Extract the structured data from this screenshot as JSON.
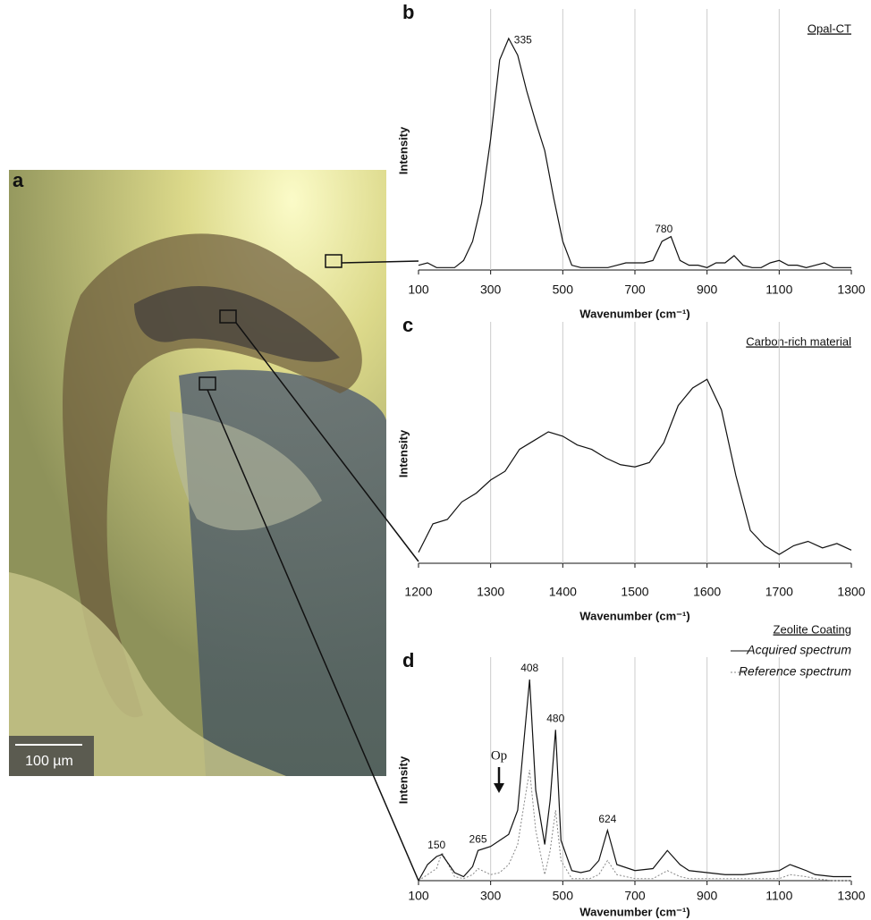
{
  "figure": {
    "panel": "a",
    "scale_bar": "100 µm"
  },
  "chart_data": [
    {
      "type": "line",
      "panel": "b",
      "title": "Opal-CT",
      "x_label": "Wavenumber (cm⁻¹)",
      "y_label": "Intensity",
      "x": [
        100,
        125,
        150,
        175,
        200,
        225,
        250,
        275,
        300,
        325,
        350,
        375,
        400,
        425,
        450,
        475,
        500,
        525,
        550,
        575,
        600,
        625,
        650,
        675,
        700,
        725,
        750,
        775,
        800,
        825,
        850,
        875,
        900,
        925,
        950,
        975,
        1000,
        1025,
        1050,
        1075,
        1100,
        1125,
        1150,
        1175,
        1200,
        1225,
        1250,
        1275,
        1300
      ],
      "values": [
        2,
        3,
        1,
        1,
        1,
        4,
        12,
        28,
        55,
        88,
        97,
        90,
        75,
        62,
        50,
        30,
        12,
        2,
        1,
        1,
        1,
        1,
        2,
        3,
        3,
        3,
        4,
        12,
        14,
        4,
        2,
        2,
        1,
        3,
        3,
        6,
        2,
        1,
        1,
        3,
        4,
        2,
        2,
        1,
        2,
        3,
        1,
        1,
        1
      ],
      "color": "#111111",
      "peaks": [
        335,
        780
      ],
      "xlim": [
        100,
        1300
      ],
      "ylim": [
        0,
        100
      ],
      "xticks": [
        100,
        300,
        500,
        700,
        900,
        1100,
        1300
      ],
      "grid": true
    },
    {
      "type": "line",
      "panel": "c",
      "title": "Carbon-rich material",
      "x_label": "Wavenumber (cm⁻¹)",
      "y_label": "Intensity",
      "x": [
        1200,
        1220,
        1240,
        1260,
        1280,
        1300,
        1320,
        1340,
        1360,
        1380,
        1400,
        1420,
        1440,
        1460,
        1480,
        1500,
        1520,
        1540,
        1560,
        1580,
        1600,
        1620,
        1640,
        1660,
        1680,
        1700,
        1720,
        1740,
        1760,
        1780,
        1800
      ],
      "values": [
        5,
        18,
        20,
        28,
        32,
        38,
        42,
        52,
        56,
        60,
        58,
        54,
        52,
        48,
        45,
        44,
        46,
        55,
        72,
        80,
        84,
        70,
        40,
        15,
        8,
        4,
        8,
        10,
        7,
        9,
        6
      ],
      "color": "#111111",
      "xlim": [
        1200,
        1800
      ],
      "ylim": [
        0,
        100
      ],
      "xticks": [
        1200,
        1300,
        1400,
        1500,
        1600,
        1700,
        1800
      ],
      "grid": true
    },
    {
      "type": "line",
      "panel": "d",
      "title": "Zeolite Coating",
      "x_label": "Wavenumber (cm⁻¹)",
      "y_label": "Intensity",
      "x": [
        100,
        125,
        150,
        165,
        200,
        225,
        250,
        265,
        300,
        325,
        350,
        375,
        390,
        408,
        425,
        450,
        465,
        480,
        495,
        525,
        550,
        575,
        600,
        624,
        650,
        700,
        750,
        790,
        825,
        850,
        900,
        950,
        1000,
        1050,
        1100,
        1130,
        1175,
        1200,
        1250,
        1300
      ],
      "series": [
        {
          "name": "Acquired spectrum",
          "color": "#111111",
          "dash": false,
          "values": [
            0,
            8,
            12,
            13,
            4,
            2,
            7,
            15,
            17,
            20,
            23,
            35,
            65,
            100,
            45,
            18,
            40,
            75,
            20,
            5,
            4,
            5,
            10,
            25,
            8,
            5,
            6,
            15,
            8,
            5,
            4,
            3,
            3,
            4,
            5,
            8,
            5,
            3,
            2,
            2
          ]
        },
        {
          "name": "Reference spectrum",
          "color": "#888888",
          "dash": true,
          "values": [
            0,
            3,
            6,
            14,
            2,
            1,
            3,
            6,
            3,
            4,
            8,
            18,
            35,
            55,
            25,
            3,
            15,
            35,
            10,
            1,
            1,
            1,
            3,
            10,
            3,
            1,
            1,
            5,
            2,
            1,
            1,
            1,
            1,
            1,
            1,
            3,
            2,
            1,
            0,
            0
          ]
        }
      ],
      "peaks": [
        150,
        265,
        408,
        480,
        624
      ],
      "annotation": "Op",
      "xlim": [
        100,
        1300
      ],
      "ylim": [
        0,
        100
      ],
      "xticks": [
        100,
        300,
        500,
        700,
        900,
        1100,
        1300
      ],
      "grid": true,
      "legend": "top-right"
    }
  ]
}
